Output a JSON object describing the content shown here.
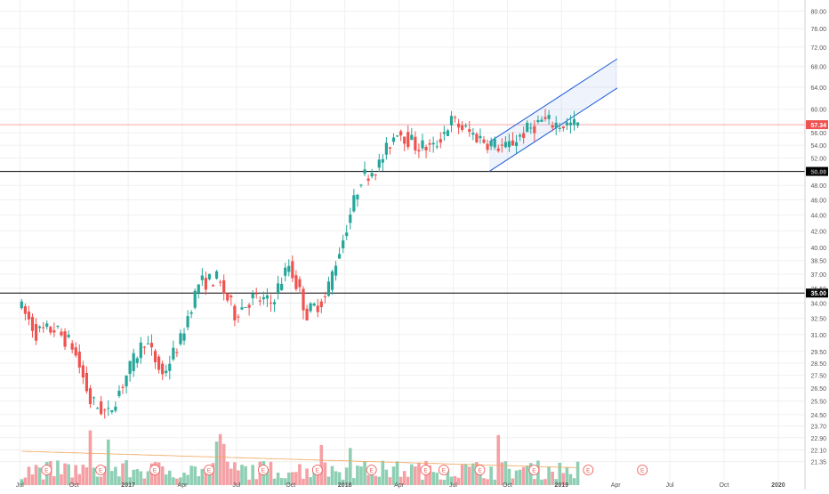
{
  "chart_data": {
    "type": "candlestick",
    "x_tick_labels": [
      "Jul",
      "Oct",
      "2017",
      "Apr",
      "Jul",
      "Oct",
      "2018",
      "Apr",
      "Jul",
      "Oct",
      "2019",
      "Apr",
      "Jul",
      "Oct",
      "2020"
    ],
    "y_tick_labels": [
      "80.00",
      "76.00",
      "72.00",
      "68.00",
      "64.00",
      "60.00",
      "56.00",
      "54.00",
      "52.00",
      "50.00",
      "48.00",
      "46.00",
      "44.00",
      "42.00",
      "40.00",
      "38.50",
      "37.00",
      "35.50",
      "34.00",
      "32.50",
      "31.00",
      "29.50",
      "28.50",
      "27.50",
      "26.50",
      "25.50",
      "24.50",
      "23.70",
      "22.90",
      "22.10",
      "21.35"
    ],
    "y_scale": "log",
    "ylim": [
      21.0,
      82.0
    ],
    "grid": true,
    "price_label": "57.34",
    "horizontal_lines": [
      {
        "value": 50.0,
        "label": "50.00"
      },
      {
        "value": 35.0,
        "label": "35.00"
      }
    ],
    "current_price_line": 57.34,
    "channel": {
      "lower": {
        "from": [
          "2018-09",
          50.0
        ],
        "to": [
          "2019-03",
          61.5
        ]
      },
      "upper": {
        "from": [
          "2018-09",
          54.5
        ],
        "to": [
          "2019-03",
          67.0
        ]
      }
    },
    "earnings_markers": [
      "E",
      "E",
      "E",
      "E",
      "E",
      "E",
      "E",
      "E",
      "E",
      "E",
      "E",
      "E",
      "E"
    ],
    "colors": {
      "up": "#26a69a",
      "down": "#ef5350",
      "volume_up": "#8fcfb4",
      "volume_down": "#f4a0a4",
      "channel": "#1e5bd7",
      "price_line": "#ef5350",
      "level": "#000000"
    },
    "monthly_closes": [
      {
        "month": "2016-07",
        "close": 34.0
      },
      {
        "month": "2016-08",
        "close": 31.2
      },
      {
        "month": "2016-09",
        "close": 31.5
      },
      {
        "month": "2016-10",
        "close": 30.0
      },
      {
        "month": "2016-11",
        "close": 25.5
      },
      {
        "month": "2016-12",
        "close": 24.5
      },
      {
        "month": "2017-01",
        "close": 27.5
      },
      {
        "month": "2017-02",
        "close": 30.5
      },
      {
        "month": "2017-03",
        "close": 27.5
      },
      {
        "month": "2017-04",
        "close": 30.5
      },
      {
        "month": "2017-05",
        "close": 36.0
      },
      {
        "month": "2017-06",
        "close": 36.5
      },
      {
        "month": "2017-07",
        "close": 33.0
      },
      {
        "month": "2017-08",
        "close": 34.5
      },
      {
        "month": "2017-09",
        "close": 34.0
      },
      {
        "month": "2017-10",
        "close": 38.0
      },
      {
        "month": "2017-11",
        "close": 33.0
      },
      {
        "month": "2017-12",
        "close": 34.5
      },
      {
        "month": "2018-01",
        "close": 41.0
      },
      {
        "month": "2018-02",
        "close": 49.0
      },
      {
        "month": "2018-03",
        "close": 51.0
      },
      {
        "month": "2018-04",
        "close": 56.5
      },
      {
        "month": "2018-05",
        "close": 54.0
      },
      {
        "month": "2018-06",
        "close": 53.5
      },
      {
        "month": "2018-07",
        "close": 58.0
      },
      {
        "month": "2018-08",
        "close": 56.0
      },
      {
        "month": "2018-09",
        "close": 54.5
      },
      {
        "month": "2018-10",
        "close": 53.5
      },
      {
        "month": "2018-11",
        "close": 56.0
      },
      {
        "month": "2018-12",
        "close": 58.0
      },
      {
        "month": "2019-01",
        "close": 57.34
      }
    ]
  }
}
